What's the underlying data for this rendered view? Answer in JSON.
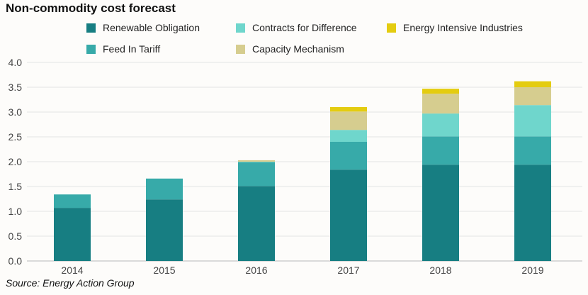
{
  "title": "Non-commodity cost forecast",
  "source": "Source: Energy Action Group",
  "chart_data": {
    "type": "bar",
    "stacked": true,
    "categories": [
      "2014",
      "2015",
      "2016",
      "2017",
      "2018",
      "2019"
    ],
    "series": [
      {
        "name": "Renewable Obligation",
        "color": "#177e82",
        "values": [
          1.07,
          1.24,
          1.51,
          1.84,
          1.94,
          1.94
        ]
      },
      {
        "name": "Feed In Tariff",
        "color": "#37aaa9",
        "values": [
          0.27,
          0.42,
          0.48,
          0.56,
          0.57,
          0.57
        ]
      },
      {
        "name": "Contracts for Difference",
        "color": "#6fd6cc",
        "values": [
          0,
          0,
          0.01,
          0.24,
          0.46,
          0.63
        ]
      },
      {
        "name": "Capacity Mechanism",
        "color": "#d6cd8f",
        "values": [
          0,
          0,
          0.03,
          0.37,
          0.4,
          0.36
        ]
      },
      {
        "name": "Energy Intensive Industries",
        "color": "#e4cc10",
        "values": [
          0,
          0,
          0,
          0.09,
          0.1,
          0.12
        ]
      }
    ],
    "yticks": [
      "0.0",
      "0.5",
      "1.0",
      "1.5",
      "2.0",
      "2.5",
      "3.0",
      "3.5",
      "4.0"
    ],
    "ylim": [
      0,
      4.0
    ],
    "grid": true,
    "legend_position": "top"
  }
}
